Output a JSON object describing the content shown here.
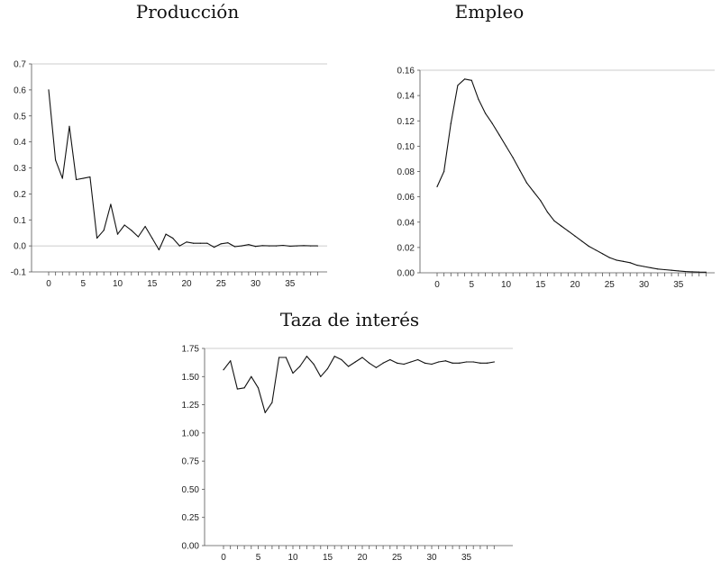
{
  "chart_data": [
    {
      "type": "line",
      "title": "Producción",
      "xlabel": "",
      "ylabel": "",
      "xlim": [
        0,
        39
      ],
      "ylim": [
        -0.1,
        0.7
      ],
      "yticks": [
        "-0.1",
        "0.0",
        "0.1",
        "0.2",
        "0.3",
        "0.4",
        "0.5",
        "0.6",
        "0.7"
      ],
      "xticks": [
        "0",
        "5",
        "10",
        "15",
        "20",
        "25",
        "30",
        "35"
      ],
      "zero_line": true,
      "x": [
        0,
        1,
        2,
        3,
        4,
        5,
        6,
        7,
        8,
        9,
        10,
        11,
        12,
        13,
        14,
        15,
        16,
        17,
        18,
        19,
        20,
        21,
        22,
        23,
        24,
        25,
        26,
        27,
        28,
        29,
        30,
        31,
        32,
        33,
        34,
        35,
        36,
        37,
        38,
        39
      ],
      "values": [
        0.6,
        0.33,
        0.26,
        0.46,
        0.255,
        0.26,
        0.265,
        0.03,
        0.06,
        0.16,
        0.045,
        0.08,
        0.06,
        0.035,
        0.075,
        0.03,
        -0.015,
        0.045,
        0.03,
        0.0,
        0.015,
        0.01,
        0.01,
        0.01,
        -0.005,
        0.008,
        0.012,
        -0.003,
        0.0,
        0.005,
        -0.002,
        0.001,
        0.0,
        0.0,
        0.002,
        -0.001,
        0.0,
        0.001,
        0.0,
        0.0
      ]
    },
    {
      "type": "line",
      "title": "Empleo",
      "xlabel": "",
      "ylabel": "",
      "xlim": [
        0,
        39
      ],
      "ylim": [
        0,
        0.16
      ],
      "yticks": [
        "0.00",
        "0.02",
        "0.04",
        "0.06",
        "0.08",
        "0.10",
        "0.12",
        "0.14",
        "0.16"
      ],
      "xticks": [
        "0",
        "5",
        "10",
        "15",
        "20",
        "25",
        "30",
        "35"
      ],
      "zero_line": false,
      "x": [
        0,
        1,
        2,
        3,
        4,
        5,
        6,
        7,
        8,
        9,
        10,
        11,
        12,
        13,
        14,
        15,
        16,
        17,
        18,
        19,
        20,
        21,
        22,
        23,
        24,
        25,
        26,
        27,
        28,
        29,
        30,
        31,
        32,
        33,
        34,
        35,
        36,
        37,
        38,
        39
      ],
      "values": [
        0.068,
        0.08,
        0.118,
        0.148,
        0.153,
        0.152,
        0.137,
        0.126,
        0.118,
        0.109,
        0.1,
        0.091,
        0.081,
        0.071,
        0.064,
        0.057,
        0.048,
        0.041,
        0.037,
        0.033,
        0.029,
        0.025,
        0.021,
        0.018,
        0.015,
        0.012,
        0.01,
        0.009,
        0.008,
        0.006,
        0.005,
        0.004,
        0.003,
        0.0025,
        0.002,
        0.0015,
        0.001,
        0.0008,
        0.0006,
        0.0005
      ]
    },
    {
      "type": "line",
      "title": "Taza de interés",
      "xlabel": "",
      "ylabel": "",
      "xlim": [
        0,
        39
      ],
      "ylim": [
        0,
        1.75
      ],
      "yticks": [
        "0.00",
        "0.25",
        "0.50",
        "0.75",
        "1.00",
        "1.25",
        "1.50",
        "1.75"
      ],
      "xticks": [
        "0",
        "5",
        "10",
        "15",
        "20",
        "25",
        "30",
        "35"
      ],
      "zero_line": false,
      "x": [
        0,
        1,
        2,
        3,
        4,
        5,
        6,
        7,
        8,
        9,
        10,
        11,
        12,
        13,
        14,
        15,
        16,
        17,
        18,
        19,
        20,
        21,
        22,
        23,
        24,
        25,
        26,
        27,
        28,
        29,
        30,
        31,
        32,
        33,
        34,
        35,
        36,
        37,
        38,
        39
      ],
      "values": [
        1.56,
        1.64,
        1.39,
        1.4,
        1.5,
        1.4,
        1.18,
        1.27,
        1.67,
        1.67,
        1.53,
        1.59,
        1.68,
        1.61,
        1.5,
        1.57,
        1.68,
        1.65,
        1.59,
        1.63,
        1.67,
        1.62,
        1.58,
        1.62,
        1.65,
        1.62,
        1.61,
        1.63,
        1.65,
        1.62,
        1.61,
        1.63,
        1.64,
        1.62,
        1.62,
        1.63,
        1.63,
        1.62,
        1.62,
        1.63
      ]
    }
  ]
}
